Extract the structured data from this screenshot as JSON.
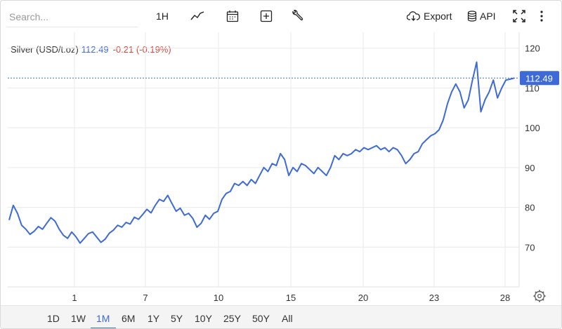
{
  "search": {
    "placeholder": "Search..."
  },
  "toolbar": {
    "interval_label": "1H",
    "export_label": "Export",
    "api_label": "API"
  },
  "legend": {
    "name": "Silver (USD/t.oz)",
    "value": "112.49",
    "change": "-0.21 (-0.19%)"
  },
  "price_tag": "112.49",
  "ranges": [
    "1D",
    "1W",
    "1M",
    "6M",
    "1Y",
    "5Y",
    "10Y",
    "25Y",
    "50Y",
    "All"
  ],
  "active_range": "1M",
  "colors": {
    "line": "#3d6ad6",
    "negative": "#d9463b",
    "grid": "#e9e9e9"
  },
  "chart_data": {
    "type": "line",
    "title": "",
    "xlabel": "",
    "ylabel": "",
    "ylim": [
      60,
      124
    ],
    "yticks": [
      70,
      80,
      90,
      100,
      110,
      120
    ],
    "xticks": [
      "1",
      "7",
      "10",
      "15",
      "20",
      "23",
      "28"
    ],
    "grid": true,
    "last_value": 112.49,
    "series": [
      {
        "name": "Silver (USD/t.oz)",
        "values": [
          76.8,
          80.5,
          78.5,
          75.5,
          74.5,
          73.2,
          74.0,
          75.2,
          74.5,
          76.0,
          77.4,
          76.5,
          74.5,
          73.0,
          72.2,
          73.8,
          72.6,
          71.0,
          72.2,
          73.4,
          73.8,
          72.5,
          71.2,
          72.0,
          73.5,
          74.3,
          75.5,
          75.0,
          76.2,
          75.8,
          77.5,
          77.0,
          78.2,
          79.5,
          78.6,
          80.5,
          82.0,
          81.5,
          83.0,
          81.0,
          79.0,
          79.8,
          78.0,
          78.5,
          77.2,
          75.0,
          76.0,
          78.0,
          77.0,
          78.5,
          79.0,
          82.0,
          83.5,
          84.0,
          86.0,
          85.5,
          86.5,
          85.5,
          87.0,
          86.0,
          88.0,
          90.0,
          89.0,
          91.0,
          90.5,
          93.5,
          92.0,
          88.0,
          90.0,
          89.0,
          91.0,
          90.5,
          89.5,
          88.5,
          90.0,
          89.0,
          88.0,
          90.0,
          93.0,
          92.0,
          93.5,
          93.0,
          93.5,
          94.5,
          94.0,
          95.0,
          94.5,
          95.0,
          95.5,
          94.5,
          95.0,
          94.0,
          95.0,
          94.5,
          93.0,
          91.0,
          92.0,
          93.5,
          94.0,
          96.0,
          97.0,
          98.0,
          98.5,
          99.5,
          102.0,
          106.0,
          109.0,
          111.0,
          109.0,
          105.0,
          107.0,
          112.0,
          116.5,
          104.0,
          107.0,
          109.0,
          112.0,
          107.5,
          110.0,
          112.0,
          112.2,
          112.49
        ]
      }
    ]
  }
}
